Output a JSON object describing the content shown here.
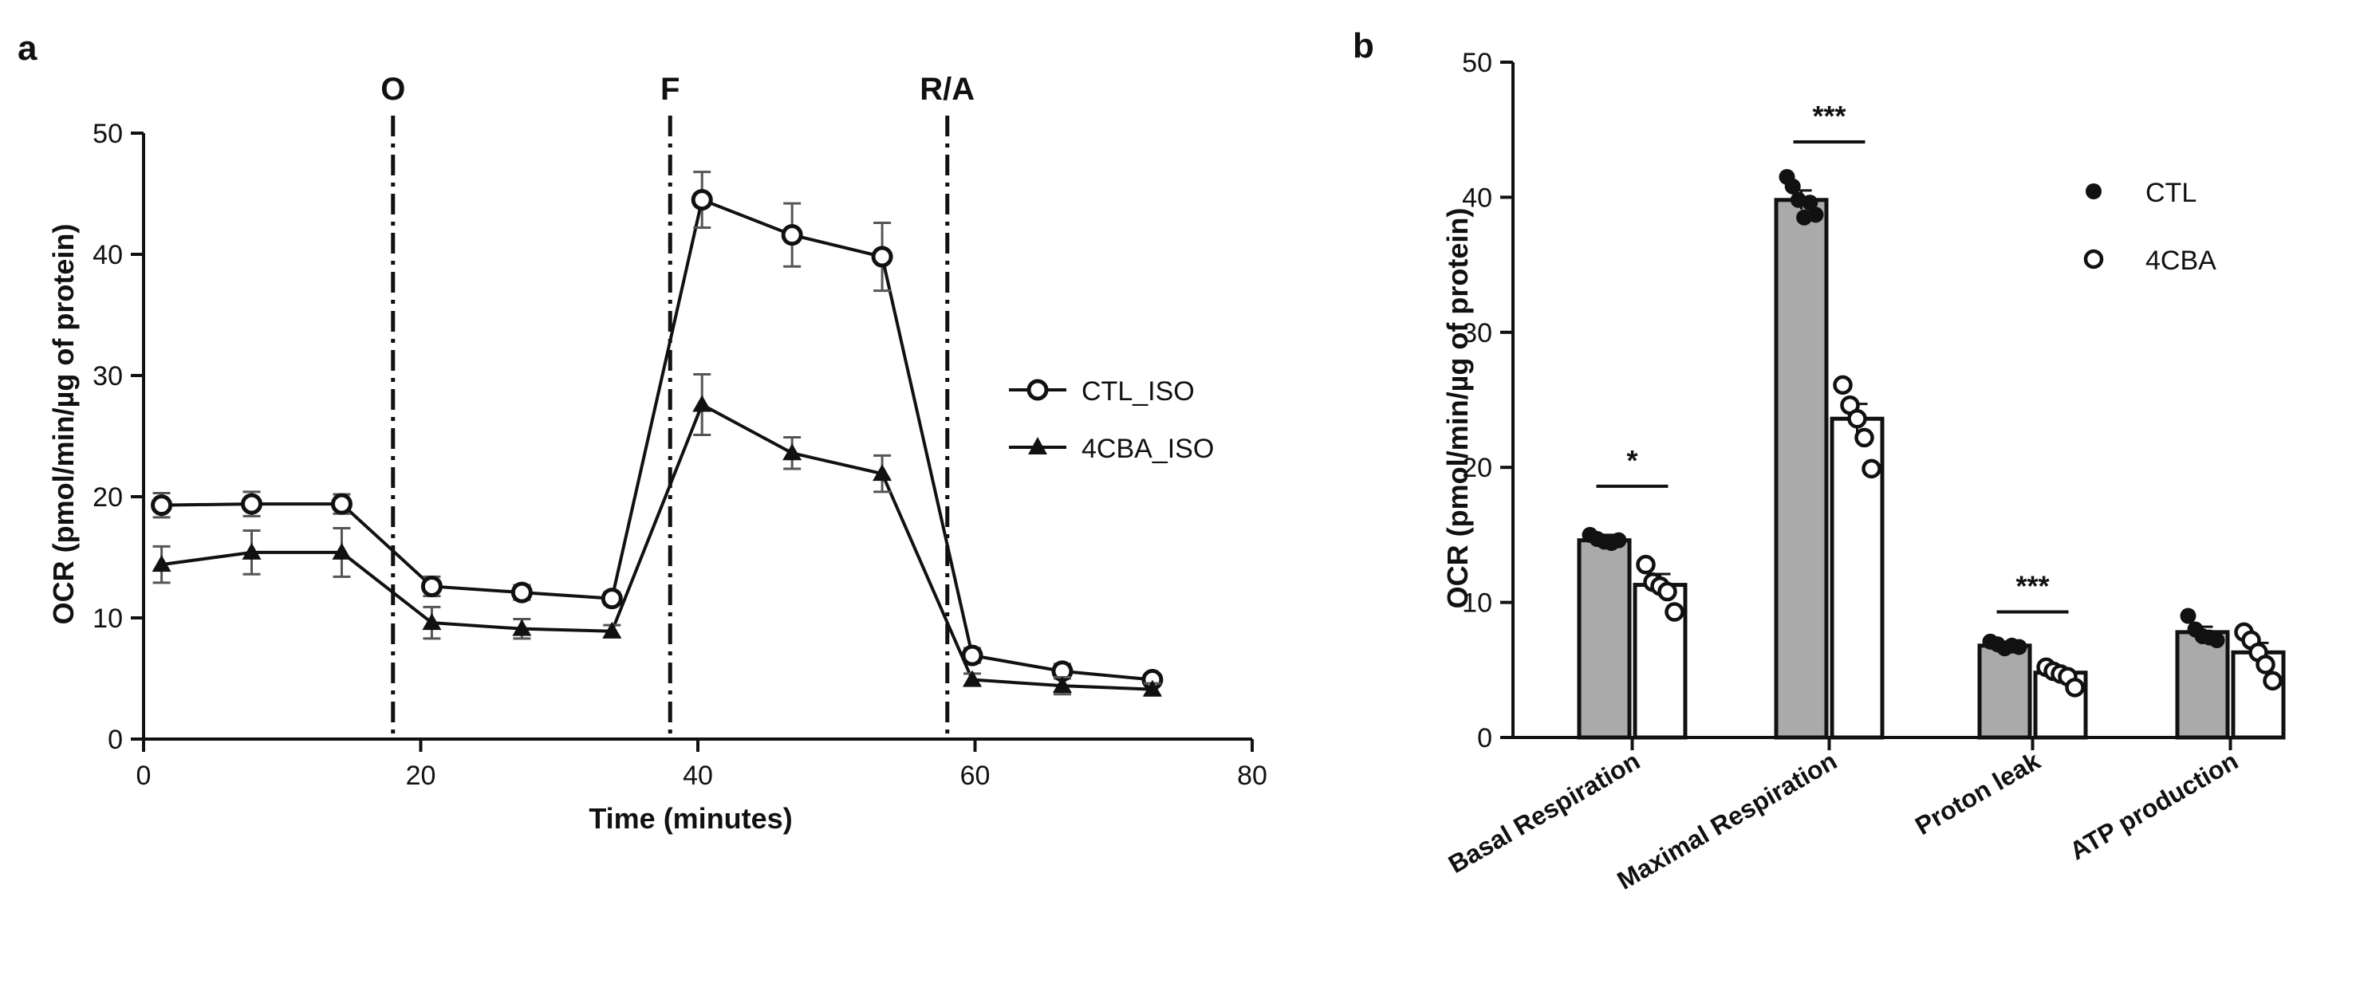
{
  "chart_data": [
    {
      "type": "line",
      "panel_label": "a",
      "xlabel": "Time (minutes)",
      "ylabel": "OCR (pmol/min/µg of protein)",
      "xlim": [
        0,
        80
      ],
      "ylim": [
        0,
        50
      ],
      "xticks": [
        0,
        20,
        40,
        60,
        80
      ],
      "yticks": [
        0,
        10,
        20,
        30,
        40,
        50
      ],
      "injections": [
        {
          "label": "O",
          "x": 18
        },
        {
          "label": "F",
          "x": 38
        },
        {
          "label": "R/A",
          "x": 58
        }
      ],
      "series": [
        {
          "name": "CTL_ISO",
          "marker": "open-circle",
          "x": [
            1.3,
            7.8,
            14.3,
            20.8,
            27.3,
            33.8,
            40.3,
            46.8,
            53.3,
            59.8,
            66.3,
            72.8
          ],
          "y": [
            19.3,
            19.4,
            19.4,
            12.6,
            12.1,
            11.6,
            44.5,
            41.6,
            39.8,
            6.9,
            5.6,
            4.9
          ],
          "err": [
            1.0,
            1.0,
            0.8,
            0.8,
            0.6,
            0.5,
            2.3,
            2.6,
            2.8,
            0.6,
            0.6,
            0.4
          ]
        },
        {
          "name": "4CBA_ISO",
          "marker": "filled-triangle",
          "x": [
            1.3,
            7.8,
            14.3,
            20.8,
            27.3,
            33.8,
            40.3,
            46.8,
            53.3,
            59.8,
            66.3,
            72.8
          ],
          "y": [
            14.4,
            15.4,
            15.4,
            9.6,
            9.1,
            8.9,
            27.6,
            23.6,
            21.9,
            4.9,
            4.4,
            4.1
          ],
          "err": [
            1.5,
            1.8,
            2.0,
            1.3,
            0.8,
            0.5,
            2.5,
            1.3,
            1.5,
            0.5,
            0.7,
            0.5
          ]
        }
      ]
    },
    {
      "type": "bar",
      "panel_label": "b",
      "ylabel": "OCR (pmol/min/µg of protein)",
      "ylim": [
        0,
        50
      ],
      "yticks": [
        0,
        10,
        20,
        30,
        40,
        50
      ],
      "categories": [
        "Basal Respiration",
        "Maximal Respiration",
        "Proton leak",
        "ATP production"
      ],
      "series": [
        {
          "name": "CTL",
          "marker": "filled-circle",
          "bar_color": "#aaaaaa",
          "values": [
            14.6,
            39.8,
            6.8,
            7.8
          ],
          "err": [
            0.4,
            0.7,
            0.2,
            0.4
          ],
          "points": [
            [
              15.0,
              14.7,
              14.5,
              14.4,
              14.6
            ],
            [
              41.5,
              40.8,
              39.8,
              38.5,
              39.6,
              38.7
            ],
            [
              7.1,
              6.9,
              6.6,
              6.8,
              6.7
            ],
            [
              9.0,
              8.0,
              7.5,
              7.4,
              7.2
            ]
          ]
        },
        {
          "name": "4CBA",
          "marker": "open-circle",
          "bar_color": "#ffffff",
          "values": [
            11.3,
            23.6,
            4.8,
            6.3
          ],
          "err": [
            0.8,
            1.1,
            0.3,
            0.7
          ],
          "points": [
            [
              12.8,
              11.5,
              11.2,
              10.8,
              9.3
            ],
            [
              26.1,
              24.6,
              23.6,
              22.2,
              19.9
            ],
            [
              5.2,
              4.9,
              4.7,
              4.5,
              3.7
            ],
            [
              7.8,
              7.2,
              6.3,
              5.4,
              4.2
            ]
          ]
        }
      ],
      "significance": [
        {
          "category": "Basal Respiration",
          "label": "*",
          "y": 18.6
        },
        {
          "category": "Maximal Respiration",
          "label": "***",
          "y": 44.1
        },
        {
          "category": "Proton leak",
          "label": "***",
          "y": 9.3
        }
      ]
    }
  ]
}
